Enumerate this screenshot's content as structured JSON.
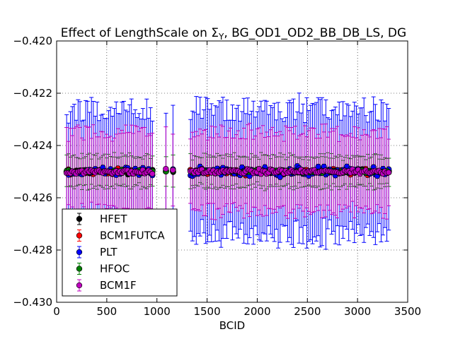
{
  "chart_data": {
    "type": "scatter",
    "title_prefix": "Effect of LengthScale on Σ",
    "title_subscript": "Y",
    "title_suffix": ", BG_OD1_OD2_BB_DB_LS, DG",
    "xlabel": "BCID",
    "ylabel": "",
    "xlim": [
      0,
      3500
    ],
    "ylim": [
      -0.43,
      -0.42
    ],
    "xticks": [
      0,
      500,
      1000,
      1500,
      2000,
      2500,
      3000,
      3500
    ],
    "xtick_labels": [
      "0",
      "500",
      "1000",
      "1500",
      "2000",
      "2500",
      "3000",
      "3500"
    ],
    "yticks": [
      -0.43,
      -0.428,
      -0.426,
      -0.424,
      -0.422,
      -0.42
    ],
    "ytick_labels": [
      "−0.430",
      "−0.428",
      "−0.426",
      "−0.424",
      "−0.422",
      "−0.420"
    ],
    "grid": true,
    "legend_position": "lower-left",
    "bunch_trains": [
      {
        "start": 100,
        "end": 960,
        "step": 19
      },
      {
        "start": 1090,
        "end": 1170,
        "step": 70
      },
      {
        "start": 1335,
        "end": 3320,
        "step": 19
      }
    ],
    "central_value": -0.425,
    "series": [
      {
        "name": "HFET",
        "color": "#000000",
        "scatter": 8e-05,
        "err": 3e-05,
        "offset": 2
      },
      {
        "name": "BCM1FUTCA",
        "color": "#ff0000",
        "scatter": 0.0001,
        "err": 5e-05,
        "offset": -2
      },
      {
        "name": "PLT",
        "color": "#0000ff",
        "scatter": 0.00018,
        "err": 0.0024,
        "offset": 0
      },
      {
        "name": "HFOC",
        "color": "#008000",
        "scatter": 6e-05,
        "err": 0.00058,
        "offset": 1
      },
      {
        "name": "BCM1F",
        "color": "#bf00bf",
        "scatter": 9e-05,
        "err": 0.0015,
        "offset": -1
      }
    ]
  }
}
